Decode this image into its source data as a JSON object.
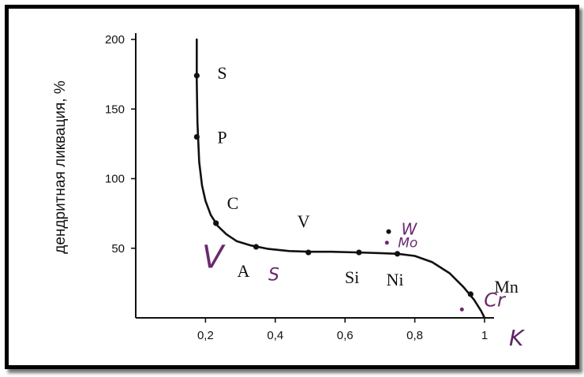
{
  "chart_data": {
    "type": "line",
    "xlabel": "K",
    "ylabel": "дендритная ликвация, %",
    "xlim": [
      0,
      1.0
    ],
    "ylim": [
      0,
      200
    ],
    "x_ticks": [
      "0,2",
      "0,4",
      "0,6",
      "0,8",
      "1"
    ],
    "y_ticks": [
      "50",
      "100",
      "150",
      "200"
    ],
    "grid": false,
    "legend": "none",
    "curve": {
      "x": [
        0.175,
        0.175,
        0.177,
        0.182,
        0.19,
        0.2,
        0.215,
        0.235,
        0.26,
        0.29,
        0.33,
        0.38,
        0.44,
        0.5,
        0.56,
        0.63,
        0.7,
        0.75,
        0.8,
        0.85,
        0.9,
        0.94,
        0.97,
        0.99,
        1.0
      ],
      "y": [
        200,
        170,
        140,
        112,
        95,
        84,
        74,
        66,
        60,
        55,
        52,
        49.5,
        48,
        47.5,
        47.5,
        47,
        46.5,
        46,
        44.5,
        40,
        32,
        22,
        13,
        5,
        0
      ]
    },
    "points": [
      {
        "label": "S",
        "x": 0.175,
        "y": 174
      },
      {
        "label": "P",
        "x": 0.175,
        "y": 130
      },
      {
        "label": "C",
        "x": 0.23,
        "y": 68
      },
      {
        "label": "A",
        "x": 0.345,
        "y": 51
      },
      {
        "label": "V",
        "x": 0.495,
        "y": 47
      },
      {
        "label": "Si",
        "x": 0.64,
        "y": 47
      },
      {
        "label": "Ni",
        "x": 0.75,
        "y": 46
      },
      {
        "label": "Mn",
        "x": 0.96,
        "y": 17
      }
    ],
    "handwritten": [
      {
        "label": "W",
        "x": 0.725,
        "y": 62
      },
      {
        "label": "Mo",
        "x": 0.72,
        "y": 54
      },
      {
        "label": "Cr",
        "x": 0.935,
        "y": 6
      },
      {
        "label": "V",
        "x": 0.19,
        "y": 36
      },
      {
        "label": "S",
        "x": 0.38,
        "y": 27
      }
    ],
    "colors": {
      "ink": "#111111",
      "handwriting": "#6a2a6e"
    }
  }
}
